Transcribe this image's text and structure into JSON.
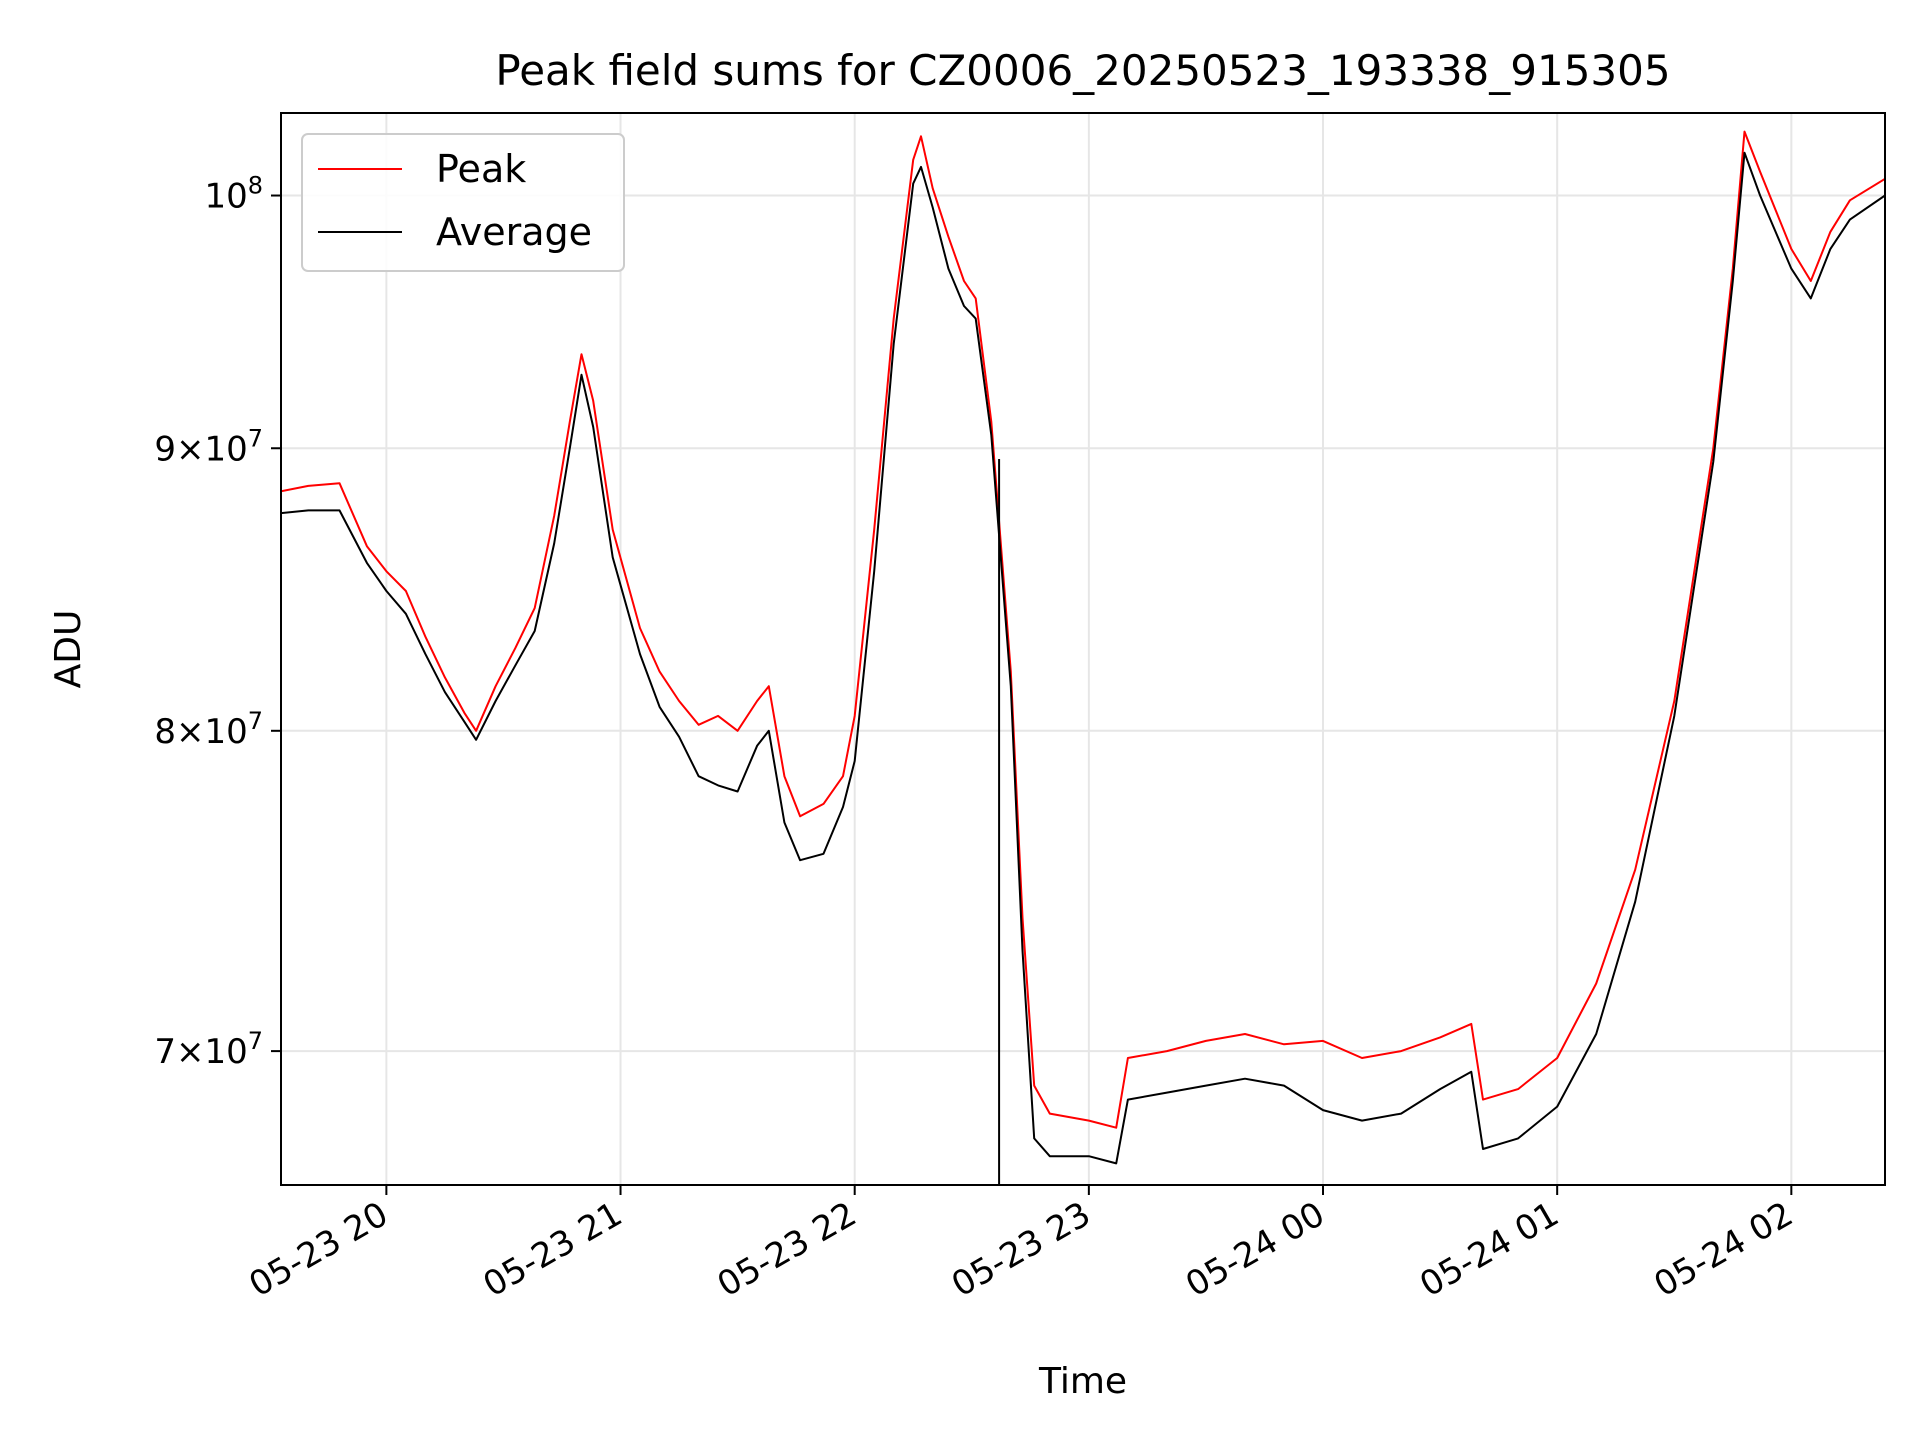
{
  "chart_data": {
    "type": "line",
    "title": "Peak field sums for CZ0006_20250523_193338_915305",
    "xlabel": "Time",
    "ylabel": "ADU",
    "y_scale": "log",
    "x_range": [
      "2025-05-23 19:33",
      "2025-05-24 02:24"
    ],
    "ylim": [
      66200000,
      103500000
    ],
    "grid": true,
    "legend_position": "top-left",
    "x_ticks": [
      {
        "t": "2025-05-23 20:00",
        "label": "05-23 20"
      },
      {
        "t": "2025-05-23 21:00",
        "label": "05-23 21"
      },
      {
        "t": "2025-05-23 22:00",
        "label": "05-23 22"
      },
      {
        "t": "2025-05-23 23:00",
        "label": "05-23 23"
      },
      {
        "t": "2025-05-24 00:00",
        "label": "05-24 00"
      },
      {
        "t": "2025-05-24 01:00",
        "label": "05-24 01"
      },
      {
        "t": "2025-05-24 02:00",
        "label": "05-24 02"
      }
    ],
    "y_ticks": [
      {
        "value": 70000000,
        "mant": "7",
        "exp": "7"
      },
      {
        "value": 80000000,
        "mant": "8",
        "exp": "7"
      },
      {
        "value": 90000000,
        "mant": "9",
        "exp": "7"
      },
      {
        "value": 100000000,
        "mant": "",
        "exp": "8"
      }
    ],
    "series": [
      {
        "name": "Peak",
        "color": "#ff0000",
        "points": [
          [
            "2025-05-23 19:33",
            88400000
          ],
          [
            "2025-05-23 19:40",
            88600000
          ],
          [
            "2025-05-23 19:48",
            88700000
          ],
          [
            "2025-05-23 19:55",
            86400000
          ],
          [
            "2025-05-23 20:00",
            85500000
          ],
          [
            "2025-05-23 20:05",
            84800000
          ],
          [
            "2025-05-23 20:10",
            83200000
          ],
          [
            "2025-05-23 20:15",
            81800000
          ],
          [
            "2025-05-23 20:20",
            80600000
          ],
          [
            "2025-05-23 20:23",
            80000000
          ],
          [
            "2025-05-23 20:28",
            81500000
          ],
          [
            "2025-05-23 20:33",
            82800000
          ],
          [
            "2025-05-23 20:38",
            84200000
          ],
          [
            "2025-05-23 20:43",
            87500000
          ],
          [
            "2025-05-23 20:47",
            91000000
          ],
          [
            "2025-05-23 20:50",
            93600000
          ],
          [
            "2025-05-23 20:53",
            91800000
          ],
          [
            "2025-05-23 20:58",
            87000000
          ],
          [
            "2025-05-23 21:05",
            83500000
          ],
          [
            "2025-05-23 21:10",
            82000000
          ],
          [
            "2025-05-23 21:15",
            81000000
          ],
          [
            "2025-05-23 21:20",
            80200000
          ],
          [
            "2025-05-23 21:25",
            80500000
          ],
          [
            "2025-05-23 21:30",
            80000000
          ],
          [
            "2025-05-23 21:35",
            81000000
          ],
          [
            "2025-05-23 21:38",
            81500000
          ],
          [
            "2025-05-23 21:42",
            78500000
          ],
          [
            "2025-05-23 21:46",
            77200000
          ],
          [
            "2025-05-23 21:52",
            77600000
          ],
          [
            "2025-05-23 21:57",
            78500000
          ],
          [
            "2025-05-23 22:00",
            80500000
          ],
          [
            "2025-05-23 22:05",
            87000000
          ],
          [
            "2025-05-23 22:10",
            95000000
          ],
          [
            "2025-05-23 22:15",
            101500000
          ],
          [
            "2025-05-23 22:17",
            102500000
          ],
          [
            "2025-05-23 22:20",
            100300000
          ],
          [
            "2025-05-23 22:24",
            98300000
          ],
          [
            "2025-05-23 22:28",
            96500000
          ],
          [
            "2025-05-23 22:31",
            95800000
          ],
          [
            "2025-05-23 22:35",
            91000000
          ],
          [
            "2025-05-23 22:40",
            82000000
          ],
          [
            "2025-05-23 22:43",
            74000000
          ],
          [
            "2025-05-23 22:46",
            69000000
          ],
          [
            "2025-05-23 22:50",
            68200000
          ],
          [
            "2025-05-23 23:00",
            68000000
          ],
          [
            "2025-05-23 23:07",
            67800000
          ],
          [
            "2025-05-23 23:10",
            69800000
          ],
          [
            "2025-05-23 23:20",
            70000000
          ],
          [
            "2025-05-23 23:30",
            70300000
          ],
          [
            "2025-05-23 23:40",
            70500000
          ],
          [
            "2025-05-23 23:50",
            70200000
          ],
          [
            "2025-05-24 00:00",
            70300000
          ],
          [
            "2025-05-24 00:10",
            69800000
          ],
          [
            "2025-05-24 00:20",
            70000000
          ],
          [
            "2025-05-24 00:30",
            70400000
          ],
          [
            "2025-05-24 00:38",
            70800000
          ],
          [
            "2025-05-24 00:41",
            68600000
          ],
          [
            "2025-05-24 00:50",
            68900000
          ],
          [
            "2025-05-24 01:00",
            69800000
          ],
          [
            "2025-05-24 01:10",
            72000000
          ],
          [
            "2025-05-24 01:20",
            75500000
          ],
          [
            "2025-05-24 01:30",
            81000000
          ],
          [
            "2025-05-24 01:40",
            90000000
          ],
          [
            "2025-05-24 01:45",
            97000000
          ],
          [
            "2025-05-24 01:48",
            102700000
          ],
          [
            "2025-05-24 01:52",
            101000000
          ],
          [
            "2025-05-24 02:00",
            97800000
          ],
          [
            "2025-05-24 02:05",
            96500000
          ],
          [
            "2025-05-24 02:10",
            98500000
          ],
          [
            "2025-05-24 02:15",
            99800000
          ],
          [
            "2025-05-24 02:24",
            100700000
          ]
        ]
      },
      {
        "name": "Average",
        "color": "#000000",
        "points": [
          [
            "2025-05-23 19:33",
            87600000
          ],
          [
            "2025-05-23 19:40",
            87700000
          ],
          [
            "2025-05-23 19:48",
            87700000
          ],
          [
            "2025-05-23 19:55",
            85800000
          ],
          [
            "2025-05-23 20:00",
            84800000
          ],
          [
            "2025-05-23 20:05",
            84000000
          ],
          [
            "2025-05-23 20:10",
            82600000
          ],
          [
            "2025-05-23 20:15",
            81300000
          ],
          [
            "2025-05-23 20:20",
            80300000
          ],
          [
            "2025-05-23 20:23",
            79700000
          ],
          [
            "2025-05-23 20:28",
            81000000
          ],
          [
            "2025-05-23 20:33",
            82200000
          ],
          [
            "2025-05-23 20:38",
            83400000
          ],
          [
            "2025-05-23 20:43",
            86500000
          ],
          [
            "2025-05-23 20:47",
            90000000
          ],
          [
            "2025-05-23 20:50",
            92800000
          ],
          [
            "2025-05-23 20:53",
            90800000
          ],
          [
            "2025-05-23 20:58",
            86000000
          ],
          [
            "2025-05-23 21:05",
            82600000
          ],
          [
            "2025-05-23 21:10",
            80800000
          ],
          [
            "2025-05-23 21:15",
            79800000
          ],
          [
            "2025-05-23 21:20",
            78500000
          ],
          [
            "2025-05-23 21:25",
            78200000
          ],
          [
            "2025-05-23 21:30",
            78000000
          ],
          [
            "2025-05-23 21:35",
            79500000
          ],
          [
            "2025-05-23 21:38",
            80000000
          ],
          [
            "2025-05-23 21:42",
            77000000
          ],
          [
            "2025-05-23 21:46",
            75800000
          ],
          [
            "2025-05-23 21:52",
            76000000
          ],
          [
            "2025-05-23 21:57",
            77500000
          ],
          [
            "2025-05-23 22:00",
            79000000
          ],
          [
            "2025-05-23 22:05",
            85500000
          ],
          [
            "2025-05-23 22:10",
            94000000
          ],
          [
            "2025-05-23 22:15",
            100500000
          ],
          [
            "2025-05-23 22:17",
            101200000
          ],
          [
            "2025-05-23 22:20",
            99500000
          ],
          [
            "2025-05-23 22:24",
            97000000
          ],
          [
            "2025-05-23 22:28",
            95500000
          ],
          [
            "2025-05-23 22:31",
            95000000
          ],
          [
            "2025-05-23 22:35",
            90500000
          ],
          [
            "2025-05-23 22:40",
            81500000
          ],
          [
            "2025-05-23 22:43",
            73000000
          ],
          [
            "2025-05-23 22:46",
            67500000
          ],
          [
            "2025-05-23 22:50",
            67000000
          ],
          [
            "2025-05-23 23:00",
            67000000
          ],
          [
            "2025-05-23 23:07",
            66800000
          ],
          [
            "2025-05-23 23:10",
            68600000
          ],
          [
            "2025-05-23 23:20",
            68800000
          ],
          [
            "2025-05-23 23:30",
            69000000
          ],
          [
            "2025-05-23 23:40",
            69200000
          ],
          [
            "2025-05-23 23:50",
            69000000
          ],
          [
            "2025-05-24 00:00",
            68300000
          ],
          [
            "2025-05-24 00:10",
            68000000
          ],
          [
            "2025-05-24 00:20",
            68200000
          ],
          [
            "2025-05-24 00:30",
            68900000
          ],
          [
            "2025-05-24 00:38",
            69400000
          ],
          [
            "2025-05-24 00:41",
            67200000
          ],
          [
            "2025-05-24 00:50",
            67500000
          ],
          [
            "2025-05-24 01:00",
            68400000
          ],
          [
            "2025-05-24 01:10",
            70500000
          ],
          [
            "2025-05-24 01:20",
            74500000
          ],
          [
            "2025-05-24 01:30",
            80500000
          ],
          [
            "2025-05-24 01:40",
            89500000
          ],
          [
            "2025-05-24 01:45",
            96500000
          ],
          [
            "2025-05-24 01:48",
            101800000
          ],
          [
            "2025-05-24 01:52",
            100000000
          ],
          [
            "2025-05-24 02:00",
            97000000
          ],
          [
            "2025-05-24 02:05",
            95800000
          ],
          [
            "2025-05-24 02:10",
            97800000
          ],
          [
            "2025-05-24 02:15",
            99000000
          ],
          [
            "2025-05-24 02:24",
            100000000
          ]
        ],
        "spikes": [
          [
            "2025-05-23 22:37",
            89600000
          ]
        ]
      }
    ]
  }
}
